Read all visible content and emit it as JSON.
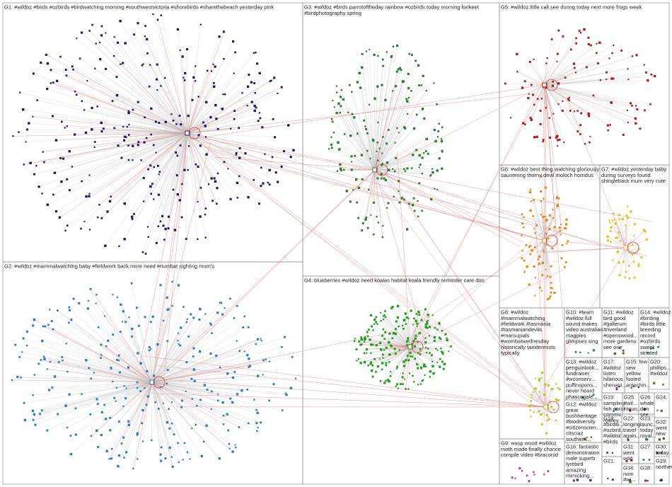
{
  "groups": [
    {
      "label": [
        "G1: #wildoz #birds #ozbirds #birdwatching morning #southwestvictoria #shorebirds #sharethebeach yesterday pink"
      ]
    },
    {
      "label": [
        "G2: #wildoz #mammalwatching baby #fieldwork back more need #numbat sighting mum's"
      ]
    },
    {
      "label": [
        "G3: #wildoz #birds parrotoftheday rainbow #ozbirds today morning lorikeet",
        "#birdphotography spring"
      ]
    },
    {
      "label": [
        "G4: blueberries #wildoz need koalas habitat koala friendly reminder care don"
      ]
    },
    {
      "label": [
        "G5: #wildoz little call see during today next more frogs week"
      ]
    },
    {
      "label": [
        "G6: #wildoz best thing watching gloriously",
        "sauntering thorny devil moloch horridus"
      ]
    },
    {
      "label": [
        "G7: #wildoz yesterday baby",
        "during surveys found",
        "shingleback mum very cute"
      ]
    },
    {
      "label": [
        "G8: #wildoz",
        "#mammalwatching",
        "#fieldwork #tasmania",
        "#tasmaniandevils",
        "#marsupials",
        "#wombatwednesday",
        "historically taxidermists",
        "typically"
      ]
    },
    {
      "label": [
        "G9: wasp wood #wildoz",
        "moth made finally chance",
        "compile video #braconid"
      ]
    },
    {
      "label": [
        "G10: #team",
        "#wildoz full",
        "sound makes",
        "video australian",
        "magpies",
        "glimpses sing"
      ]
    },
    {
      "label": [
        "G11: #wildoz",
        "bird good",
        "#gallerum",
        "#riverland",
        "#openswood...",
        "more gardens",
        "see one"
      ]
    },
    {
      "label": [
        "G14: #wildoz",
        "#birding",
        "#birds little",
        "breeding",
        "record",
        "#ozbirds",
        "sweet",
        "striated"
      ]
    },
    {
      "label": [
        "G13: #wildoz",
        "penguinlook...",
        "fundraiser",
        "#wconserv...",
        "puffinspons...",
        "never heard",
        "phascogale..."
      ]
    },
    {
      "label": [
        "G17:",
        "#wildoz",
        "listen",
        "hilarious",
        "shenani..."
      ]
    },
    {
      "label": [
        "G15: few",
        "sew",
        "yellow",
        "footed",
        "antechin..."
      ]
    },
    {
      "label": [
        "G20:",
        "phillips...",
        "#wildoz"
      ]
    },
    {
      "label": [
        "G12: #wildoz",
        "great",
        "bushheritage",
        "#biodiversity",
        "#citizenscien...",
        "citsciaz",
        "southern..."
      ]
    },
    {
      "label": [
        "G19:",
        "sampling",
        "fish coral",
        "commu...",
        "rowley..."
      ]
    },
    {
      "label": [
        "G25:",
        "#wil...",
        "moun..."
      ]
    },
    {
      "label": [
        "G26:",
        "whale",
        "don",
        "see..."
      ]
    },
    {
      "label": [
        "G24:"
      ]
    },
    {
      "label": [
        "G18:",
        "#birdw...",
        "#ozbird...",
        "#wildoz",
        "#birds"
      ]
    },
    {
      "label": [
        "G22:",
        "longing",
        "travel",
        "again..."
      ]
    },
    {
      "label": [
        "G23:",
        "launc...",
        "today",
        "royal..."
      ]
    },
    {
      "label": [
        "G32:",
        "went",
        "new"
      ]
    },
    {
      "label": [
        "G16: fantastic",
        "demonstration",
        "male superb",
        "lyrebird",
        "amazing",
        "mimicking..."
      ]
    },
    {
      "label": [
        "G31:",
        "went",
        "wild"
      ]
    },
    {
      "label": [
        "G27:"
      ]
    },
    {
      "label": [
        "G30:",
        "today..."
      ]
    },
    {
      "label": [
        "G21:"
      ]
    },
    {
      "label": [
        "G34:",
        "nom",
        "#wi..."
      ]
    },
    {
      "label": [
        "G28:"
      ]
    },
    {
      "label": [
        "G29:",
        "norther..."
      ]
    }
  ]
}
